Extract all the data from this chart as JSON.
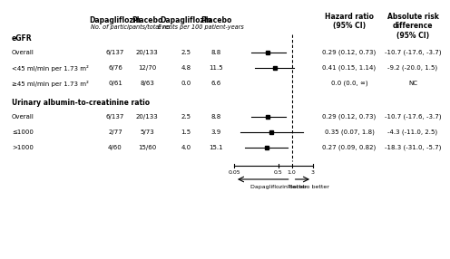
{
  "rows": [
    {
      "label": "eGFR",
      "bold": true,
      "is_header": true,
      "y": 11.0
    },
    {
      "label": "Overall",
      "bold": false,
      "is_header": false,
      "y": 10.0,
      "dapaN": "6/137",
      "placeboN": "20/133",
      "dapaE": "2.5",
      "placeboE": "8.8",
      "hr": 0.29,
      "ci_lo": 0.12,
      "ci_hi": 0.73,
      "hr_text": "0.29 (0.12, 0.73)",
      "ard_text": "-10.7 (-17.6, -3.7)"
    },
    {
      "label": "<45 ml/min per 1.73 m²",
      "bold": false,
      "is_header": false,
      "y": 9.0,
      "dapaN": "6/76",
      "placeboN": "12/70",
      "dapaE": "4.8",
      "placeboE": "11.5",
      "hr": 0.41,
      "ci_lo": 0.15,
      "ci_hi": 1.14,
      "hr_text": "0.41 (0.15, 1.14)",
      "ard_text": "-9.2 (-20.0, 1.5)"
    },
    {
      "label": "≥45 ml/min per 1.73 m²",
      "bold": false,
      "is_header": false,
      "y": 8.0,
      "dapaN": "0/61",
      "placeboN": "8/63",
      "dapaE": "0.0",
      "placeboE": "6.6",
      "hr": null,
      "ci_lo": null,
      "ci_hi": null,
      "hr_text": "0.0 (0.0, ∞)",
      "ard_text": "NC"
    },
    {
      "label": "Urinary albumin-to-creatinine ratio",
      "bold": true,
      "is_header": true,
      "y": 6.8
    },
    {
      "label": "Overall",
      "bold": false,
      "is_header": false,
      "y": 5.8,
      "dapaN": "6/137",
      "placeboN": "20/133",
      "dapaE": "2.5",
      "placeboE": "8.8",
      "hr": 0.29,
      "ci_lo": 0.12,
      "ci_hi": 0.73,
      "hr_text": "0.29 (0.12, 0.73)",
      "ard_text": "-10.7 (-17.6, -3.7)"
    },
    {
      "label": "≤1000",
      "bold": false,
      "is_header": false,
      "y": 4.8,
      "dapaN": "2/77",
      "placeboN": "5/73",
      "dapaE": "1.5",
      "placeboE": "3.9",
      "hr": 0.35,
      "ci_lo": 0.07,
      "ci_hi": 1.8,
      "hr_text": "0.35 (0.07, 1.8)",
      "ard_text": "-4.3 (-11.0, 2.5)"
    },
    {
      "label": ">1000",
      "bold": false,
      "is_header": false,
      "y": 3.8,
      "dapaN": "4/60",
      "placeboN": "15/60",
      "dapaE": "4.0",
      "placeboE": "15.1",
      "hr": 0.27,
      "ci_lo": 0.09,
      "ci_hi": 0.82,
      "hr_text": "0.27 (0.09, 0.82)",
      "ard_text": "-18.3 (-31.0, -5.7)"
    }
  ],
  "xmin": 0.05,
  "xmax": 3.0,
  "xticks": [
    0.05,
    0.5,
    1.0,
    3.0
  ],
  "xticklabels": [
    "0.05",
    "0.5",
    "1.0",
    "3"
  ],
  "arrow_label_left": "Dapagliflozin better",
  "arrow_label_right": "Placebo better",
  "background_color": "#ffffff",
  "marker_color": "#000000",
  "line_color": "#000000",
  "text_color": "#000000",
  "fontsize": 5.0,
  "fontsize_bold": 5.5,
  "col_header1_dapa": "Dapagliflozin",
  "col_header1_placebo": "Placebo",
  "col_subheader1": "No. of participants/total no.",
  "col_subheader2": "Events per 100 patient-years",
  "col_hr_header": "Hazard ratio\n(95% CI)",
  "col_ard_header": "Absolute risk\ndifference\n(95% CI)"
}
